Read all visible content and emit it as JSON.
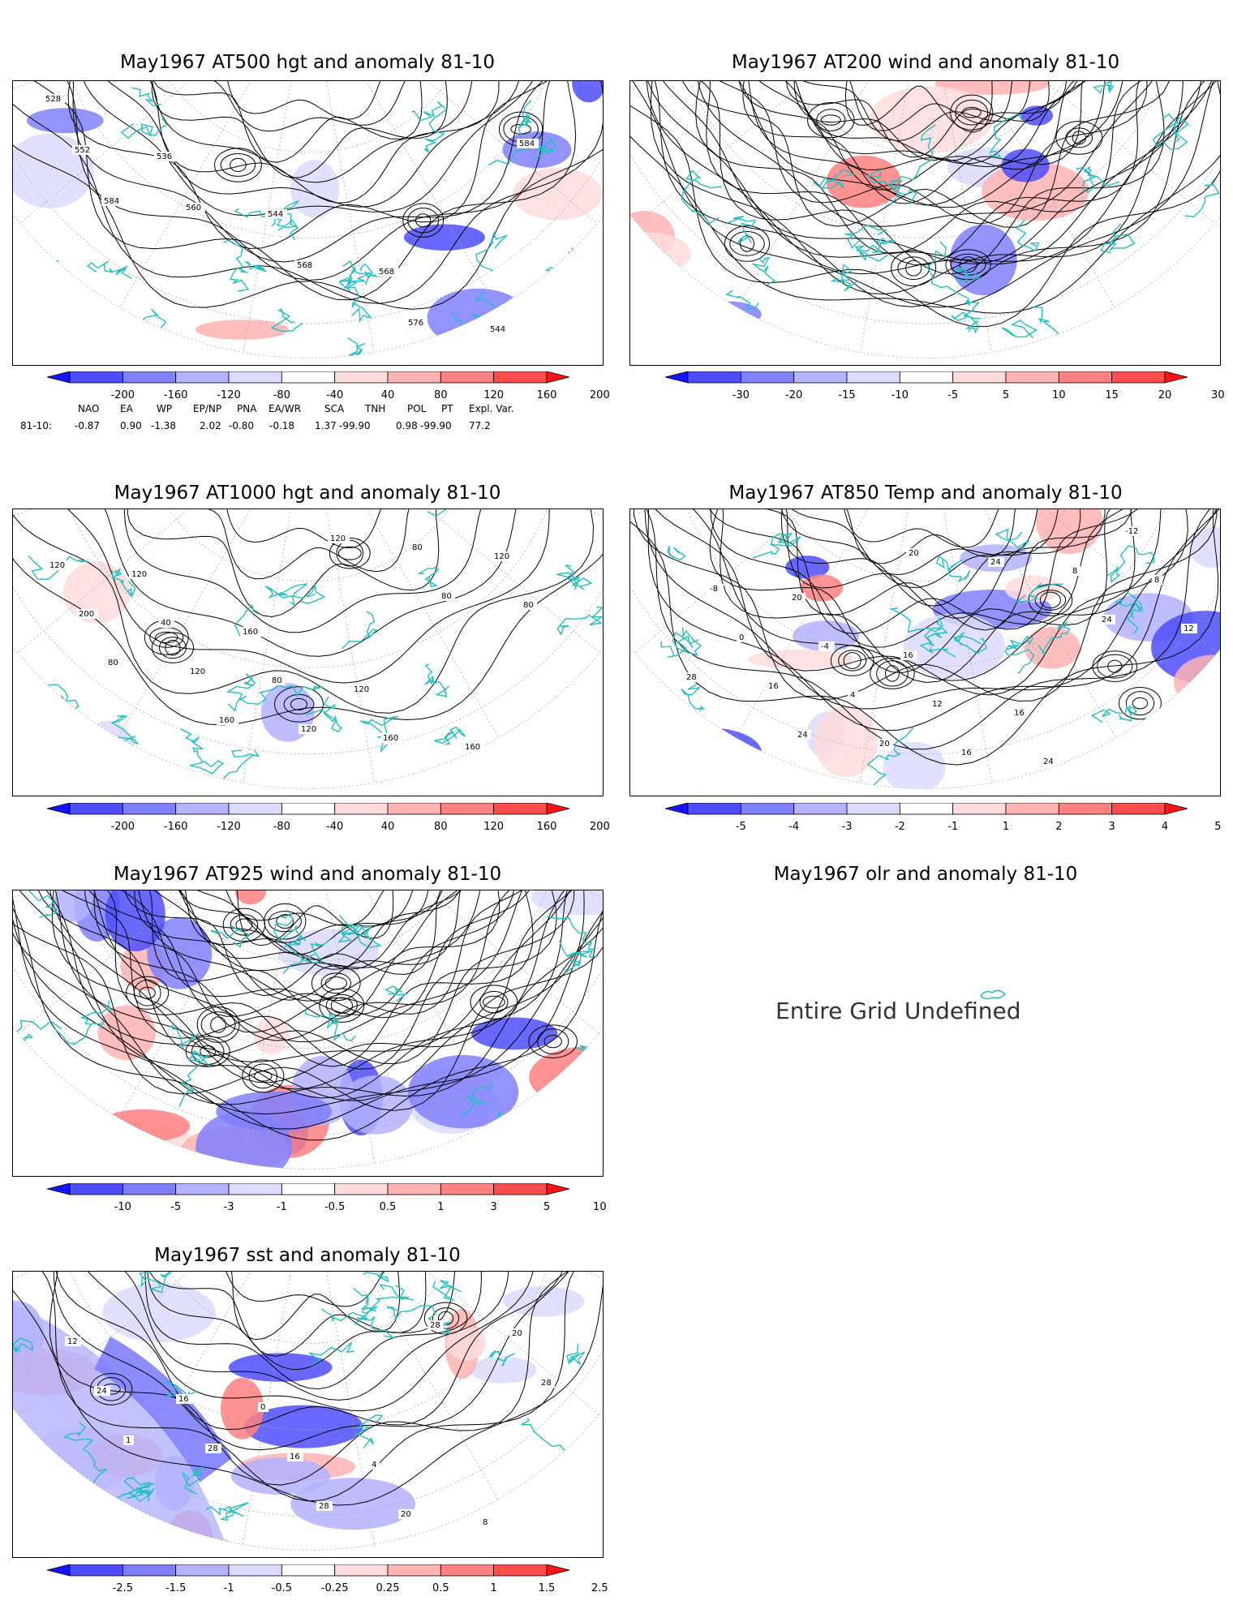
{
  "panels": [
    {
      "title": "May1967 AT500 hgt and anomaly 81-10",
      "contour_labels": [
        "528",
        "536",
        "544",
        "568",
        "544",
        "552",
        "560",
        "568",
        "576",
        "584",
        "584"
      ],
      "colorbar": {
        "labels": [
          "-200",
          "-160",
          "-120",
          "-80",
          "-40",
          "40",
          "80",
          "120",
          "160",
          "200"
        ],
        "colors": [
          "#1414ff",
          "#4d4dff",
          "#8080ff",
          "#b3b3ff",
          "#dcdcff",
          "#ffffff",
          "#ffdcdc",
          "#ffb3b3",
          "#ff8080",
          "#ff4d4d",
          "#ff1414"
        ]
      }
    },
    {
      "title": "May1967 AT200 wind and anomaly 81-10",
      "contour_labels": [],
      "colorbar": {
        "labels": [
          "-30",
          "-20",
          "-15",
          "-10",
          "-5",
          "5",
          "10",
          "15",
          "20",
          "30"
        ],
        "colors": [
          "#1414ff",
          "#4d4dff",
          "#8080ff",
          "#b3b3ff",
          "#dcdcff",
          "#ffffff",
          "#ffdcdc",
          "#ffb3b3",
          "#ff8080",
          "#ff4d4d",
          "#ff1414"
        ]
      }
    },
    {
      "title": "May1967 AT1000 hgt and anomaly 81-10",
      "contour_labels": [
        "120",
        "160",
        "120",
        "160",
        "120",
        "40",
        "80",
        "160",
        "120",
        "200",
        "120",
        "120",
        "80",
        "80",
        "80",
        "160",
        "120",
        "80"
      ],
      "colorbar": {
        "labels": [
          "-200",
          "-160",
          "-120",
          "-80",
          "-40",
          "40",
          "80",
          "120",
          "160",
          "200"
        ],
        "colors": [
          "#1414ff",
          "#4d4dff",
          "#8080ff",
          "#b3b3ff",
          "#dcdcff",
          "#ffffff",
          "#ffdcdc",
          "#ffb3b3",
          "#ff8080",
          "#ff4d4d",
          "#ff1414"
        ]
      }
    },
    {
      "title": "May1967 AT850 Temp and anomaly 81-10",
      "contour_labels": [
        "20",
        "16",
        "16",
        "-12",
        "-8",
        "-4",
        "12",
        "24",
        "8",
        "0",
        "4",
        "16",
        "8",
        "12",
        "16",
        "20",
        "24",
        "24",
        "28",
        "24",
        "20"
      ],
      "colorbar": {
        "labels": [
          "-5",
          "-4",
          "-3",
          "-2",
          "-1",
          "1",
          "2",
          "3",
          "4",
          "5"
        ],
        "colors": [
          "#1414ff",
          "#4d4dff",
          "#8080ff",
          "#b3b3ff",
          "#dcdcff",
          "#ffffff",
          "#ffdcdc",
          "#ffb3b3",
          "#ff8080",
          "#ff4d4d",
          "#ff1414"
        ]
      }
    },
    {
      "title": "May1967 AT925 wind and anomaly 81-10",
      "contour_labels": [],
      "colorbar": {
        "labels": [
          "-10",
          "-5",
          "-3",
          "-1",
          "-0.5",
          "0.5",
          "1",
          "3",
          "5",
          "10"
        ],
        "colors": [
          "#1414ff",
          "#4d4dff",
          "#8080ff",
          "#b3b3ff",
          "#dcdcff",
          "#ffffff",
          "#ffdcdc",
          "#ffb3b3",
          "#ff8080",
          "#ff4d4d",
          "#ff1414"
        ]
      }
    },
    {
      "title": "May1967 sst and anomaly 81-10",
      "contour_labels": [
        "0",
        "4",
        "8",
        "12",
        "16",
        "16",
        "20",
        "20",
        "24",
        "28",
        "28",
        "28",
        "28",
        "1"
      ],
      "colorbar": {
        "labels": [
          "-2.5",
          "-1.5",
          "-1",
          "-0.5",
          "-0.25",
          "0.25",
          "0.5",
          "1",
          "1.5",
          "2.5"
        ],
        "colors": [
          "#1414ff",
          "#4d4dff",
          "#8080ff",
          "#b3b3ff",
          "#dcdcff",
          "#ffffff",
          "#ffdcdc",
          "#ffb3b3",
          "#ff8080",
          "#ff4d4d",
          "#ff1414"
        ]
      }
    }
  ],
  "olr": {
    "title": "May1967 olr and anomaly 81-10",
    "message": "Entire Grid Undefined"
  },
  "indices": {
    "header": [
      "NAO",
      "EA",
      "WP",
      "EP/NP",
      "PNA",
      "EA/WR",
      "SCA",
      "TNH",
      "POL",
      "PT",
      "Expl. Var."
    ],
    "row_label": "81-10:",
    "values": [
      "-0.87",
      "0.90",
      "-1.38",
      "2.02",
      "-0.80",
      "-0.18",
      "1.37",
      "-99.90",
      "0.98",
      "-99.90",
      "77.2"
    ]
  },
  "colors": {
    "coast": "#20c0c0",
    "contour": "#000000",
    "grid": "#aaaaaa"
  }
}
